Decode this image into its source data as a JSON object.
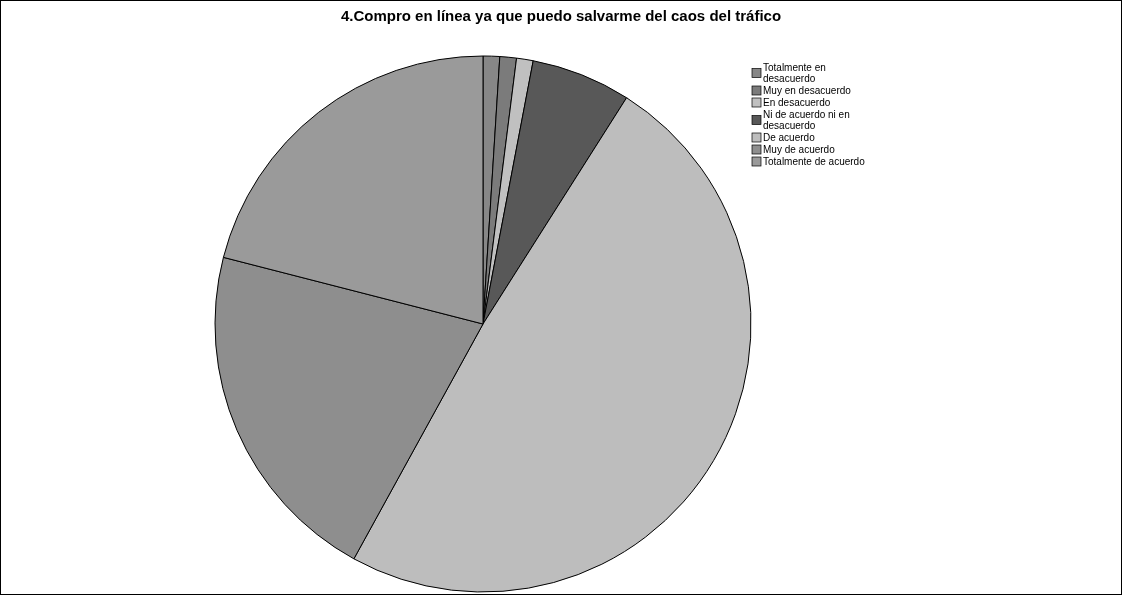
{
  "chart_data": {
    "type": "pie",
    "title": "4.Compro en línea ya que puedo salvarme del caos del tráfico",
    "categories": [
      "Totalmente en desacuerdo",
      "Muy en desacuerdo",
      "En desacuerdo",
      "Ni de acuerdo ni en desacuerdo",
      "De acuerdo",
      "Muy de acuerdo",
      "Totalmente de acuerdo"
    ],
    "values": [
      1,
      1,
      1,
      6,
      49,
      21,
      21
    ],
    "colors": [
      "#878787",
      "#7b7b7b",
      "#c0c0c0",
      "#585858",
      "#bdbdbd",
      "#8e8e8e",
      "#9a9a9a"
    ],
    "legend": "top right"
  }
}
